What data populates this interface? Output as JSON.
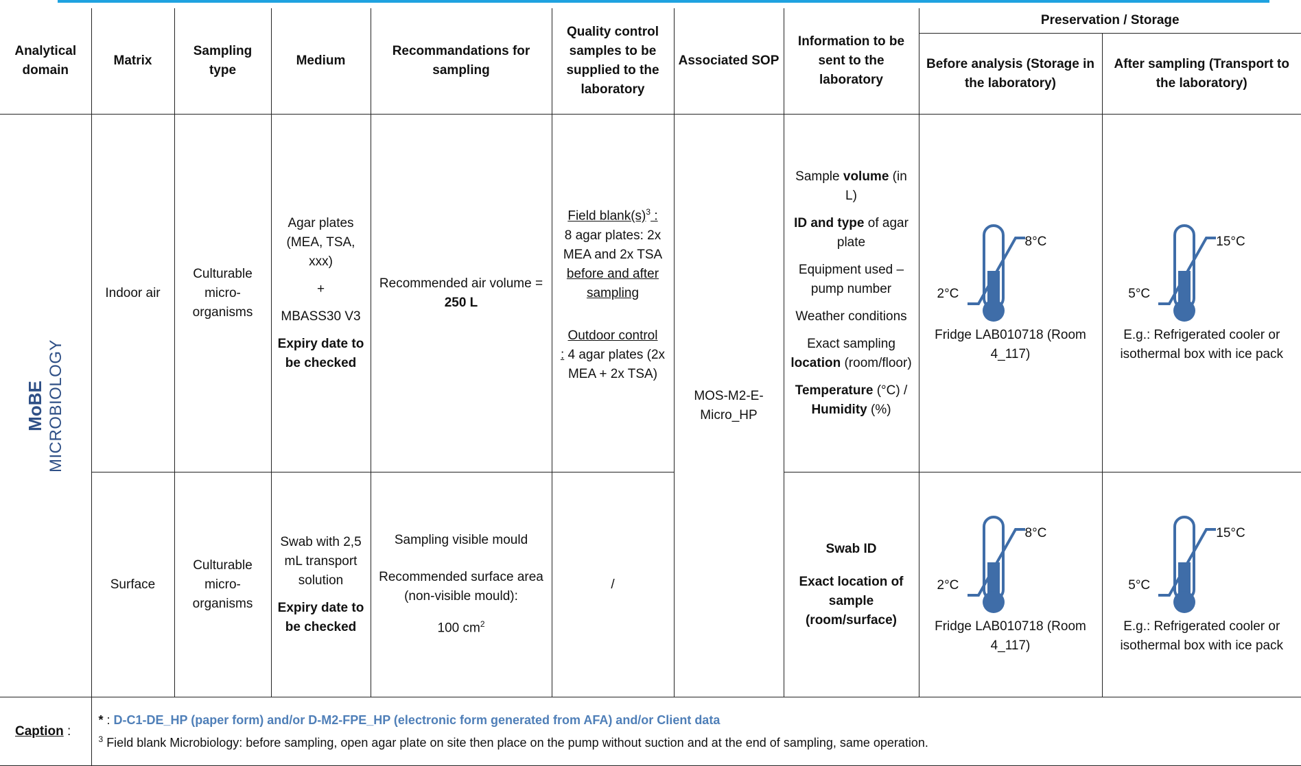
{
  "headers": {
    "analytical_domain": "Analytical domain",
    "matrix": "Matrix",
    "sampling_type": "Sampling type",
    "medium": "Medium",
    "recommendations": "Recommandations for sampling",
    "qc_samples": "Quality control samples to be supplied to the laboratory",
    "associated_sop": "Associated SOP",
    "information": "Information to be sent to the laboratory",
    "preservation": "Preservation / Storage",
    "before_analysis": "Before analysis (Storage in the laboratory)",
    "after_sampling": "After sampling (Transport to the laboratory)"
  },
  "domain": {
    "title": "MoBE",
    "subtitle": "MICROBIOLOGY"
  },
  "sop": "MOS-M2-E-Micro_HP",
  "rows": [
    {
      "matrix": "Indoor air",
      "sampling_type": "Culturable micro-organisms",
      "medium": {
        "line1": "Agar plates (MEA, TSA, xxx)",
        "plus": "+",
        "line2": "MBASS30 V3",
        "expiry": "Expiry date to be checked"
      },
      "recommendation": {
        "text": "Recommended air volume = ",
        "value": "250 L"
      },
      "qc": {
        "blank_label": "Field blank(s)",
        "blank_sup": "3",
        "blank_colon": " :",
        "blank_text": "8 agar plates: 2x MEA and 2x TSA",
        "blank_when": "before and after sampling",
        "outdoor_label": "Outdoor control",
        "outdoor_colon": ":",
        "outdoor_text": " 4 agar plates (2x MEA + 2x TSA)"
      },
      "info": {
        "volume_pre": "Sample ",
        "volume_bold": "volume",
        "volume_post": " (in L)",
        "id_bold": "ID and type",
        "id_post": " of agar plate",
        "equipment": "Equipment used – pump number",
        "weather": "Weather conditions",
        "location_pre": "Exact sampling ",
        "location_bold": "location",
        "location_post": " (room/floor)",
        "temp_bold": "Temperature",
        "temp_post": " (°C) / ",
        "humidity_bold": "Humidity",
        "humidity_post": " (%)"
      },
      "before": {
        "low": "2°C",
        "high": "8°C",
        "text": "Fridge LAB010718 (Room 4_117)"
      },
      "after": {
        "low": "5°C",
        "high": "15°C",
        "text": "E.g.: Refrigerated cooler or isothermal box with ice pack"
      }
    },
    {
      "matrix": "Surface",
      "sampling_type": "Culturable micro-organisms",
      "medium": {
        "line1": "Swab with 2,5 mL transport solution",
        "expiry": "Expiry date to be checked"
      },
      "recommendation": {
        "line1": "Sampling visible mould",
        "line2": "Recommended surface area (non-visible mould):",
        "value": "100 cm",
        "sup": "2"
      },
      "qc": {
        "text": "/"
      },
      "info": {
        "swab": "Swab ID",
        "location": "Exact location of sample (room/surface)"
      },
      "before": {
        "low": "2°C",
        "high": "8°C",
        "text": "Fridge LAB010718 (Room 4_117)"
      },
      "after": {
        "low": "5°C",
        "high": "15°C",
        "text": "E.g.: Refrigerated cooler or isothermal box with ice pack"
      }
    }
  ],
  "caption": {
    "label": "Caption",
    "colon": " :",
    "star": "*",
    "star_sep": " : ",
    "ref": "D-C1-DE_HP (paper form) and/or D-M2-FPE_HP (electronic form generated from AFA) and/or Client data",
    "note_sup": "3",
    "note": " Field blank Microbiology: before sampling, open agar plate on site then place on the pump without suction and at the end of sampling, same operation."
  },
  "colors": {
    "accent_bar": "#1fa2e0",
    "domain_text": "#2e4f86",
    "thermometer": "#3f6da8",
    "caption_ref": "#4f7fb8"
  }
}
